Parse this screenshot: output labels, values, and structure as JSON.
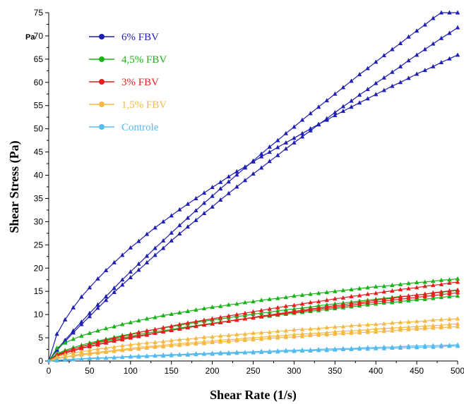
{
  "chart_data": {
    "type": "line",
    "title": "",
    "xlabel": "Shear Rate (1/s)",
    "ylabel": "Shear Stress (Pa)",
    "y_unit": "Pa",
    "xlim": [
      0,
      500
    ],
    "ylim": [
      0,
      75
    ],
    "x_ticks": [
      0,
      50,
      100,
      150,
      200,
      250,
      300,
      350,
      400,
      450,
      500
    ],
    "y_ticks": [
      0,
      5,
      10,
      15,
      20,
      25,
      30,
      35,
      40,
      45,
      50,
      55,
      60,
      65,
      70,
      75
    ],
    "grid": false,
    "legend_position": "top-left",
    "x": [
      0,
      10,
      20,
      30,
      40,
      50,
      60,
      70,
      80,
      90,
      100,
      110,
      120,
      130,
      140,
      150,
      160,
      170,
      180,
      190,
      200,
      210,
      220,
      230,
      240,
      250,
      260,
      270,
      280,
      290,
      300,
      310,
      320,
      330,
      340,
      350,
      360,
      370,
      380,
      390,
      400,
      410,
      420,
      430,
      440,
      450,
      460,
      470,
      480,
      490,
      500
    ],
    "series": [
      {
        "name": "6% FBV",
        "color": "#1f1fb4",
        "marker": "triangle",
        "curves": [
          [
            0,
            5.8,
            8.9,
            11.5,
            13.8,
            15.8,
            17.7,
            19.5,
            21.2,
            22.8,
            24.4,
            25.8,
            27.3,
            28.7,
            30.0,
            31.3,
            32.6,
            33.8,
            35.0,
            36.2,
            37.4,
            38.5,
            39.7,
            40.8,
            41.8,
            42.9,
            44.0,
            45.0,
            46.0,
            47.0,
            48.0,
            49.0,
            50.0,
            51.0,
            51.9,
            52.9,
            53.8,
            54.7,
            55.6,
            56.5,
            57.4,
            58.3,
            59.2,
            60.0,
            60.9,
            61.8,
            62.6,
            63.4,
            64.3,
            65.1,
            65.9
          ],
          [
            0,
            2.5,
            4.5,
            6.5,
            8.4,
            10.3,
            12.1,
            13.9,
            15.7,
            17.5,
            19.2,
            20.9,
            22.6,
            24.3,
            25.9,
            27.6,
            29.2,
            30.8,
            32.4,
            34.0,
            35.5,
            37.1,
            38.6,
            40.1,
            41.6,
            43.1,
            44.6,
            46.1,
            47.5,
            49.0,
            50.4,
            51.9,
            53.3,
            54.7,
            56.1,
            57.5,
            58.9,
            60.3,
            61.7,
            63.0,
            64.4,
            65.8,
            67.1,
            68.4,
            69.8,
            71.1,
            72.4,
            73.8,
            75.1,
            76.4,
            77.7
          ],
          [
            0,
            2.3,
            4.2,
            6.1,
            7.9,
            9.6,
            11.4,
            13.1,
            14.8,
            16.4,
            18.0,
            19.6,
            21.2,
            22.8,
            24.3,
            25.9,
            27.4,
            28.9,
            30.3,
            31.8,
            33.2,
            34.7,
            36.1,
            37.5,
            38.9,
            40.3,
            41.6,
            43.0,
            44.3,
            45.7,
            47.0,
            48.3,
            49.6,
            50.9,
            52.2,
            53.5,
            54.8,
            56.0,
            57.3,
            58.5,
            59.8,
            61.0,
            62.2,
            63.4,
            64.7,
            65.9,
            67.1,
            68.3,
            69.5,
            70.6,
            71.8
          ]
        ]
      },
      {
        "name": "4,5% FBV",
        "color": "#17b317",
        "marker": "triangle",
        "curves": [
          [
            0,
            2.8,
            3.9,
            4.7,
            5.4,
            6.0,
            6.5,
            7.0,
            7.4,
            7.9,
            8.3,
            8.7,
            9.1,
            9.4,
            9.8,
            10.1,
            10.4,
            10.7,
            11.0,
            11.3,
            11.6,
            11.8,
            12.1,
            12.3,
            12.6,
            12.8,
            13.1,
            13.3,
            13.5,
            13.7,
            14.0,
            14.2,
            14.4,
            14.6,
            14.8,
            15.0,
            15.2,
            15.4,
            15.6,
            15.8,
            16.0,
            16.1,
            16.3,
            16.5,
            16.7,
            16.9,
            17.0,
            17.2,
            17.4,
            17.5,
            17.7
          ],
          [
            0,
            1.6,
            2.3,
            2.9,
            3.4,
            3.9,
            4.3,
            4.7,
            5.1,
            5.5,
            5.8,
            6.2,
            6.5,
            6.8,
            7.1,
            7.4,
            7.7,
            8.0,
            8.3,
            8.6,
            8.8,
            9.1,
            9.3,
            9.6,
            9.8,
            10.1,
            10.3,
            10.5,
            10.8,
            11.0,
            11.2,
            11.4,
            11.6,
            11.9,
            12.1,
            12.3,
            12.5,
            12.7,
            12.9,
            13.1,
            13.3,
            13.5,
            13.7,
            13.9,
            14.0,
            14.2,
            14.4,
            14.6,
            14.8,
            15.0,
            15.2
          ],
          [
            0,
            1.4,
            2.1,
            2.6,
            3.1,
            3.5,
            3.9,
            4.3,
            4.7,
            5.0,
            5.3,
            5.7,
            6.0,
            6.3,
            6.5,
            6.8,
            7.1,
            7.4,
            7.6,
            7.9,
            8.1,
            8.4,
            8.6,
            8.8,
            9.1,
            9.3,
            9.5,
            9.7,
            9.9,
            10.1,
            10.3,
            10.5,
            10.7,
            10.9,
            11.1,
            11.3,
            11.5,
            11.7,
            11.9,
            12.1,
            12.3,
            12.5,
            12.6,
            12.8,
            13.0,
            13.2,
            13.3,
            13.5,
            13.7,
            13.9,
            14.0
          ]
        ]
      },
      {
        "name": "3% FBV",
        "color": "#e61e1e",
        "marker": "triangle",
        "curves": [
          [
            0,
            1.2,
            1.8,
            2.3,
            2.8,
            3.2,
            3.6,
            4.0,
            4.4,
            4.7,
            5.1,
            5.4,
            5.7,
            6.0,
            6.3,
            6.6,
            6.9,
            7.2,
            7.5,
            7.8,
            8.0,
            8.3,
            8.6,
            8.8,
            9.1,
            9.3,
            9.6,
            9.8,
            10.0,
            10.3,
            10.5,
            10.7,
            11.0,
            11.2,
            11.4,
            11.6,
            11.8,
            12.0,
            12.3,
            12.5,
            12.7,
            12.9,
            13.1,
            13.3,
            13.5,
            13.7,
            13.9,
            14.1,
            14.3,
            14.5,
            14.7
          ],
          [
            0,
            1.3,
            2.0,
            2.6,
            3.1,
            3.6,
            4.1,
            4.5,
            4.9,
            5.3,
            5.7,
            6.1,
            6.5,
            6.8,
            7.2,
            7.5,
            7.9,
            8.2,
            8.5,
            8.8,
            9.1,
            9.4,
            9.7,
            10.0,
            10.3,
            10.6,
            10.9,
            11.2,
            11.5,
            11.8,
            12.0,
            12.3,
            12.6,
            12.8,
            13.1,
            13.4,
            13.6,
            13.9,
            14.1,
            14.4,
            14.6,
            14.9,
            15.1,
            15.4,
            15.6,
            15.8,
            16.1,
            16.3,
            16.5,
            16.8,
            17.0
          ],
          [
            0,
            1.1,
            1.7,
            2.2,
            2.7,
            3.1,
            3.5,
            3.9,
            4.3,
            4.6,
            5.0,
            5.3,
            5.6,
            6.0,
            6.3,
            6.6,
            6.9,
            7.2,
            7.5,
            7.8,
            8.0,
            8.3,
            8.6,
            8.9,
            9.1,
            9.4,
            9.7,
            9.9,
            10.2,
            10.4,
            10.7,
            10.9,
            11.2,
            11.4,
            11.7,
            11.9,
            12.1,
            12.4,
            12.6,
            12.8,
            13.1,
            13.3,
            13.5,
            13.8,
            14.0,
            14.2,
            14.4,
            14.7,
            14.9,
            15.1,
            15.3
          ]
        ]
      },
      {
        "name": "1,5% FBV",
        "color": "#f5b943",
        "marker": "triangle",
        "curves": [
          [
            0,
            0.9,
            1.4,
            1.7,
            2.0,
            2.3,
            2.6,
            2.8,
            3.0,
            3.3,
            3.5,
            3.7,
            3.9,
            4.0,
            4.2,
            4.4,
            4.6,
            4.7,
            4.9,
            5.1,
            5.2,
            5.4,
            5.5,
            5.7,
            5.8,
            6.0,
            6.1,
            6.2,
            6.4,
            6.5,
            6.7,
            6.8,
            6.9,
            7.0,
            7.2,
            7.3,
            7.4,
            7.6,
            7.7,
            7.8,
            7.9,
            8.0,
            8.2,
            8.3,
            8.4,
            8.5,
            8.6,
            8.8,
            8.9,
            9.0,
            9.1
          ],
          [
            0,
            0.6,
            0.9,
            1.2,
            1.5,
            1.7,
            1.9,
            2.1,
            2.3,
            2.5,
            2.7,
            2.9,
            3.1,
            3.2,
            3.4,
            3.6,
            3.7,
            3.9,
            4.0,
            4.2,
            4.3,
            4.5,
            4.6,
            4.7,
            4.9,
            5.0,
            5.1,
            5.3,
            5.4,
            5.5,
            5.7,
            5.8,
            5.9,
            6.0,
            6.1,
            6.3,
            6.4,
            6.5,
            6.6,
            6.7,
            6.9,
            7.0,
            7.1,
            7.2,
            7.3,
            7.4,
            7.5,
            7.6,
            7.7,
            7.9,
            8.0
          ],
          [
            0,
            0.5,
            0.8,
            1.1,
            1.3,
            1.5,
            1.7,
            1.9,
            2.1,
            2.3,
            2.5,
            2.6,
            2.8,
            3.0,
            3.1,
            3.3,
            3.4,
            3.6,
            3.7,
            3.8,
            4.0,
            4.1,
            4.2,
            4.4,
            4.5,
            4.6,
            4.7,
            4.9,
            5.0,
            5.1,
            5.2,
            5.3,
            5.5,
            5.6,
            5.7,
            5.8,
            5.9,
            6.0,
            6.1,
            6.2,
            6.3,
            6.4,
            6.5,
            6.7,
            6.8,
            6.9,
            7.0,
            7.1,
            7.2,
            7.3,
            7.4
          ]
        ]
      },
      {
        "name": "Controle",
        "color": "#55bbee",
        "marker": "triangle",
        "curves": [
          [
            0,
            0.2,
            0.3,
            0.4,
            0.5,
            0.6,
            0.7,
            0.7,
            0.8,
            0.9,
            1.0,
            1.1,
            1.1,
            1.2,
            1.3,
            1.4,
            1.4,
            1.5,
            1.6,
            1.6,
            1.7,
            1.8,
            1.8,
            1.9,
            1.9,
            2.0,
            2.1,
            2.1,
            2.2,
            2.3,
            2.3,
            2.4,
            2.4,
            2.5,
            2.6,
            2.6,
            2.7,
            2.7,
            2.8,
            2.9,
            2.9,
            3.0,
            3.0,
            3.1,
            3.2,
            3.2,
            3.3,
            3.3,
            3.4,
            3.4,
            3.5
          ],
          [
            0,
            0.1,
            0.2,
            0.3,
            0.4,
            0.5,
            0.6,
            0.6,
            0.7,
            0.8,
            0.9,
            0.9,
            1.0,
            1.1,
            1.1,
            1.2,
            1.3,
            1.3,
            1.4,
            1.5,
            1.5,
            1.6,
            1.6,
            1.7,
            1.8,
            1.8,
            1.9,
            1.9,
            2.0,
            2.1,
            2.1,
            2.2,
            2.2,
            2.3,
            2.3,
            2.4,
            2.5,
            2.5,
            2.6,
            2.6,
            2.7,
            2.7,
            2.8,
            2.8,
            2.9,
            2.9,
            3.0,
            3.0,
            3.1,
            3.2,
            3.2
          ]
        ]
      }
    ]
  }
}
